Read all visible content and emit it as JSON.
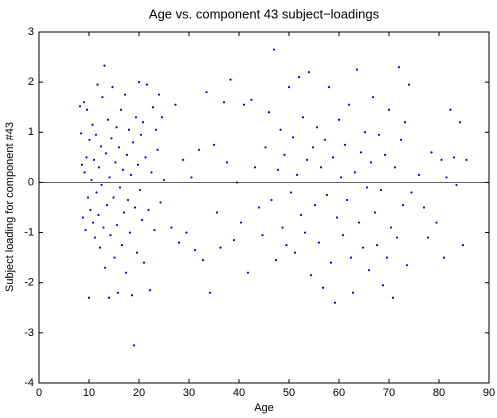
{
  "chart_data": {
    "type": "scatter",
    "title": "Age vs. component 43 subject−loadings",
    "x_label": "Age",
    "y_label": "Subject loading for component #43",
    "xlim": [
      0,
      90
    ],
    "xticks": [
      0,
      10,
      20,
      30,
      40,
      50,
      60,
      70,
      80,
      90
    ],
    "ylim": [
      -4,
      3
    ],
    "yticks": [
      -4,
      -3,
      -2,
      -1,
      0,
      1,
      2,
      3
    ],
    "hline": 0,
    "color": "#0000ff",
    "x": [
      8.2,
      8.4,
      8.6,
      8.8,
      9,
      9.1,
      9.3,
      9.5,
      9.6,
      9.8,
      10,
      10.1,
      10.3,
      10.5,
      10.7,
      10.8,
      11,
      11.2,
      11.4,
      11.5,
      11.7,
      11.9,
      12,
      12.2,
      12.4,
      12.5,
      12.7,
      12.9,
      13.1,
      13.2,
      13.4,
      13.6,
      13.8,
      14,
      14.1,
      14.3,
      14.5,
      14.7,
      14.9,
      15.1,
      15.3,
      15.5,
      15.6,
      15.8,
      16,
      16.2,
      16.4,
      16.6,
      16.8,
      17,
      17.2,
      17.4,
      17.6,
      17.8,
      18,
      18.2,
      18.4,
      18.6,
      18.8,
      19,
      19.2,
      19.4,
      19.6,
      19.8,
      20,
      20.2,
      20.4,
      20.6,
      20.8,
      21,
      21.3,
      21.6,
      21.9,
      22.2,
      22.5,
      22.8,
      23.1,
      23.4,
      23.7,
      24,
      24.3,
      24.6,
      25,
      26.5,
      27.3,
      28,
      28.8,
      29.5,
      30.5,
      31.2,
      32,
      32.8,
      33.5,
      34.2,
      35,
      35.6,
      36.3,
      37,
      37.6,
      38.3,
      39,
      39.6,
      40.4,
      41,
      41.8,
      42.5,
      43.2,
      44,
      44.7,
      45.3,
      46,
      46.5,
      47,
      47.4,
      47.8,
      48.3,
      48.7,
      49.1,
      49.5,
      50,
      50.4,
      50.8,
      51.2,
      51.6,
      52,
      52.4,
      52.8,
      53.2,
      53.6,
      54,
      54.4,
      54.8,
      55.2,
      55.6,
      56,
      56.4,
      56.8,
      57.2,
      57.6,
      58,
      58.4,
      58.8,
      59.2,
      59.6,
      60,
      60.4,
      60.8,
      61.2,
      61.6,
      62,
      62.4,
      62.8,
      63.2,
      63.6,
      64,
      64.4,
      64.8,
      65.2,
      65.6,
      66,
      66.4,
      66.8,
      67.2,
      67.6,
      68,
      68.4,
      68.8,
      69.2,
      69.6,
      70,
      70.4,
      70.8,
      71.2,
      71.6,
      72,
      72.4,
      72.8,
      73.2,
      73.6,
      74,
      74.5,
      76,
      77,
      77.8,
      78.5,
      79.5,
      80.5,
      81,
      81.5,
      82.3,
      83,
      83.5,
      84.2,
      84.8,
      85.5
    ],
    "values": [
      1.52,
      0.98,
      0.35,
      -0.7,
      1.6,
      0.2,
      -0.95,
      0.5,
      1.45,
      -0.3,
      -2.3,
      0.85,
      -0.55,
      0.05,
      1.15,
      -0.8,
      0.45,
      -1.1,
      0.95,
      -0.2,
      1.95,
      -0.65,
      0.3,
      -1.3,
      0.72,
      -0.05,
      1.7,
      -0.9,
      2.33,
      -1.7,
      0.58,
      -0.45,
      1.25,
      -2.3,
      0.1,
      -1.05,
      0.88,
      1.9,
      -0.3,
      -1.5,
      0.4,
      1.1,
      -0.85,
      -2.2,
      0.7,
      -0.1,
      1.45,
      -1.25,
      0.25,
      -0.6,
      1.75,
      -1.8,
      0.55,
      -0.35,
      1.05,
      -1.0,
      0.15,
      -2.25,
      0.8,
      -3.25,
      -0.5,
      1.3,
      -1.4,
      0.35,
      2.0,
      -0.15,
      0.95,
      -0.75,
      1.2,
      -1.6,
      0.5,
      1.95,
      -0.55,
      -2.15,
      0.2,
      1.5,
      -0.95,
      1.05,
      0.65,
      1.75,
      -0.4,
      1.3,
      0.05,
      -0.9,
      1.55,
      -1.2,
      0.45,
      -1.0,
      0.1,
      -1.35,
      0.65,
      -1.55,
      1.8,
      -2.2,
      0.75,
      -0.6,
      -1.3,
      1.6,
      0.4,
      2.05,
      -1.15,
      0.0,
      -0.8,
      1.55,
      -1.8,
      1.65,
      0.3,
      -0.5,
      -1.05,
      0.7,
      1.4,
      -0.35,
      2.65,
      -1.55,
      0.25,
      1.05,
      -0.9,
      0.55,
      -1.25,
      1.9,
      -0.2,
      0.9,
      -1.4,
      0.15,
      2.1,
      -0.65,
      1.3,
      -1.0,
      0.45,
      2.2,
      -1.85,
      0.7,
      -0.45,
      1.1,
      -1.2,
      0.3,
      -2.1,
      0.85,
      -0.25,
      1.9,
      -1.6,
      0.5,
      -2.4,
      -0.7,
      1.25,
      0.1,
      -1.05,
      0.75,
      -0.35,
      1.55,
      -1.5,
      -2.2,
      0.2,
      2.25,
      -0.8,
      0.6,
      -1.3,
      1.0,
      -0.1,
      -1.75,
      0.4,
      1.7,
      -0.6,
      -1.25,
      0.95,
      -0.15,
      -2.05,
      0.55,
      -1.5,
      1.45,
      -0.9,
      -2.3,
      0.3,
      -1.1,
      2.3,
      0.85,
      -0.45,
      1.2,
      -1.65,
      1.95,
      -0.2,
      0.15,
      -0.5,
      -1.1,
      0.6,
      -0.8,
      0.45,
      -1.5,
      0.1,
      1.45,
      0.5,
      -0.05,
      1.2,
      -1.25,
      0.45
    ]
  }
}
